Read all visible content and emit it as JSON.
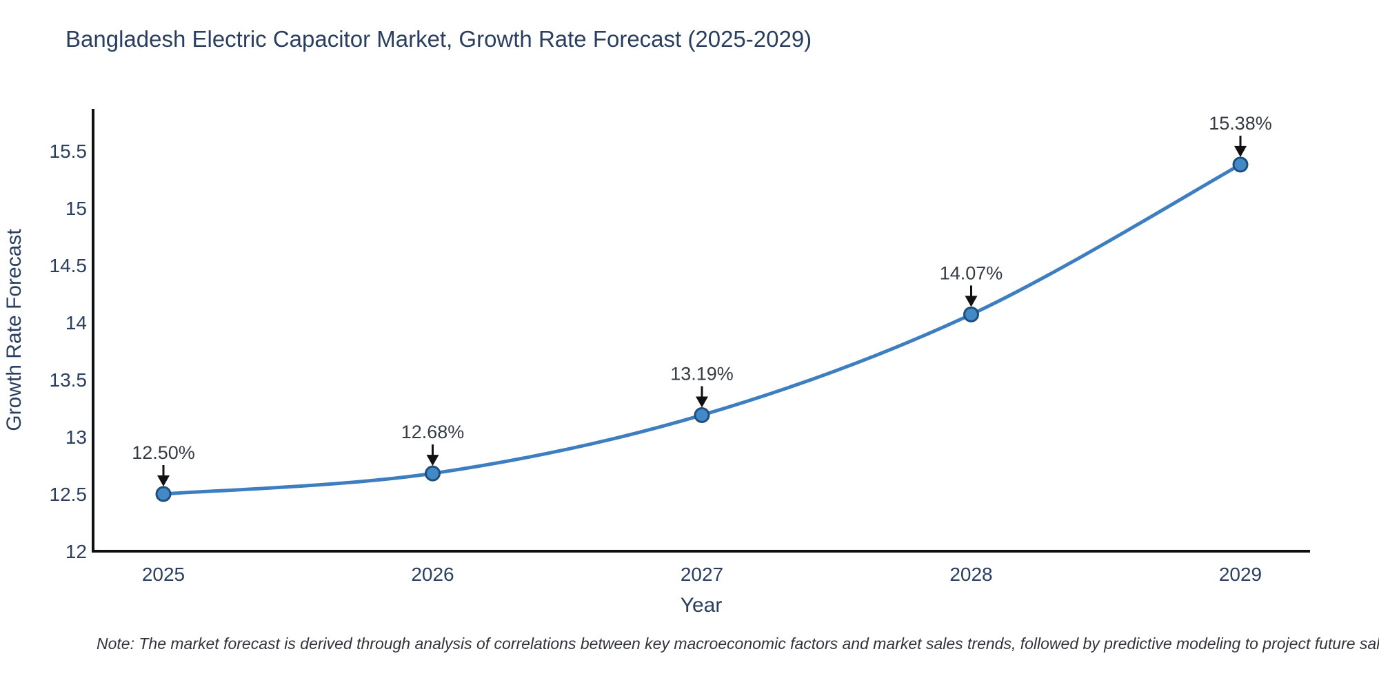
{
  "header": {
    "title": "Bangladesh Electric Capacitor Market, Growth Rate Forecast (2025-2029)"
  },
  "chart_data": {
    "type": "line",
    "title": "Bangladesh Electric Capacitor Market, Growth Rate Forecast (2025-2029)",
    "x": [
      2025,
      2026,
      2027,
      2028,
      2029
    ],
    "values": [
      12.5,
      12.68,
      13.19,
      14.07,
      15.38
    ],
    "point_labels": [
      "12.50%",
      "12.68%",
      "13.19%",
      "14.07%",
      "15.38%"
    ],
    "xlabel": "Year",
    "ylabel": "Growth Rate Forecast",
    "xticks": [
      "2025",
      "2026",
      "2027",
      "2028",
      "2029"
    ],
    "yticks": [
      "12",
      "12.5",
      "13",
      "13.5",
      "14",
      "14.5",
      "15",
      "15.5"
    ],
    "ylim": [
      12,
      15.9
    ],
    "grid": false,
    "legend_position": "none",
    "line_shape": "spline",
    "annotation_style": "label-above-with-down-arrow",
    "colors": {
      "line": "#3d7ec0",
      "marker_fill": "#4289c8",
      "marker_edge": "#1f4e7a",
      "annotation_arrow": "#111111",
      "annotation_text": "#363c44",
      "axis": "#0d0f12",
      "tick_text": "#2a3f5f",
      "title_text": "#2a3f5f"
    }
  },
  "footer": {
    "note": "Note: The market forecast is derived through analysis of correlations between key macroeconomic factors and market sales trends, followed by predictive modeling to project future sal"
  }
}
